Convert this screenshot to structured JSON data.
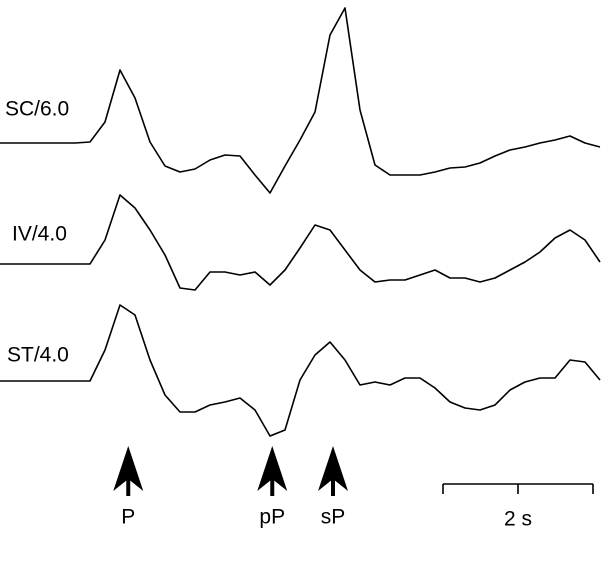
{
  "chart_data": {
    "type": "line",
    "x": [
      0,
      0.2,
      0.4,
      0.6,
      0.8,
      1.0,
      1.2,
      1.4,
      1.6,
      1.8,
      2.0,
      2.2,
      2.4,
      2.6,
      2.8,
      3.0,
      3.2,
      3.4,
      3.6,
      3.8,
      4.0,
      4.2,
      4.4,
      4.6,
      4.8,
      5.0,
      5.2,
      5.4,
      5.6,
      5.8,
      6.0,
      6.2,
      6.4,
      6.6,
      6.8,
      7.0,
      7.2,
      7.4,
      7.6,
      7.8,
      8.0
    ],
    "series": [
      {
        "name": "SC/6.0",
        "color": "#000000",
        "values": [
          0,
          0,
          0,
          0,
          0,
          0,
          0.01,
          0.21,
          0.73,
          0.45,
          0.01,
          -0.23,
          -0.29,
          -0.26,
          -0.17,
          -0.12,
          -0.13,
          -0.32,
          -0.5,
          -0.23,
          0.03,
          0.31,
          1.08,
          1.35,
          0.33,
          -0.22,
          -0.32,
          -0.32,
          -0.32,
          -0.29,
          -0.25,
          -0.24,
          -0.2,
          -0.13,
          -0.07,
          -0.04,
          0,
          0.03,
          0.07,
          0,
          -0.04
        ]
      },
      {
        "name": "IV/4.0",
        "color": "#000000",
        "values": [
          0,
          0,
          0,
          0,
          0,
          0,
          0,
          0.24,
          0.69,
          0.56,
          0.34,
          0.09,
          -0.24,
          -0.26,
          -0.08,
          -0.08,
          -0.11,
          -0.08,
          -0.21,
          -0.06,
          0.16,
          0.39,
          0.34,
          0.14,
          -0.06,
          -0.18,
          -0.16,
          -0.16,
          -0.11,
          -0.06,
          -0.14,
          -0.14,
          -0.18,
          -0.14,
          -0.06,
          0.02,
          0.12,
          0.26,
          0.34,
          0.24,
          0.02
        ]
      },
      {
        "name": "ST/4.0",
        "color": "#000000",
        "values": [
          0,
          0,
          0,
          0,
          0,
          0,
          0,
          0.31,
          0.76,
          0.66,
          0.21,
          -0.14,
          -0.31,
          -0.31,
          -0.24,
          -0.21,
          -0.17,
          -0.29,
          -0.55,
          -0.49,
          0.01,
          0.26,
          0.39,
          0.21,
          -0.04,
          -0.01,
          -0.04,
          0.03,
          0.03,
          -0.07,
          -0.21,
          -0.27,
          -0.29,
          -0.24,
          -0.09,
          -0.01,
          0.03,
          0.03,
          0.21,
          0.19,
          0.01
        ]
      }
    ],
    "annotations": [
      {
        "label": "P",
        "x": 1.71
      },
      {
        "label": "pP",
        "x": 3.63
      },
      {
        "label": "sP",
        "x": 4.44
      }
    ],
    "scale_bar": {
      "label": "2 s",
      "length": 2
    }
  }
}
